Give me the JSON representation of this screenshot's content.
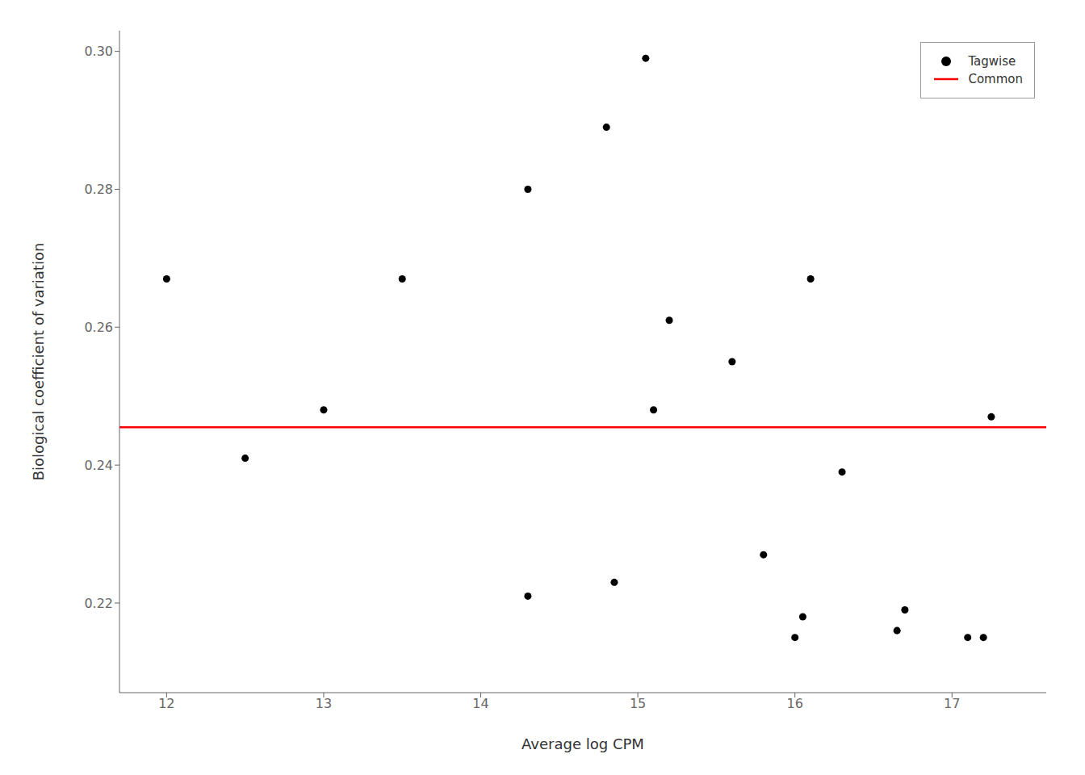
{
  "chart_data": {
    "type": "scatter",
    "xlabel": "Average log CPM",
    "ylabel": "Biological coefficient of variation",
    "x": [
      12.0,
      12.5,
      13.0,
      13.5,
      14.3,
      14.3,
      14.8,
      14.85,
      15.05,
      15.1,
      15.2,
      15.6,
      15.8,
      16.0,
      16.05,
      16.1,
      16.3,
      16.65,
      16.7,
      17.1,
      17.2,
      17.25
    ],
    "series": [
      {
        "name": "Tagwise",
        "type": "scatter",
        "marker": "circle",
        "color": "#000000",
        "values": [
          0.267,
          0.241,
          0.248,
          0.267,
          0.28,
          0.221,
          0.289,
          0.223,
          0.299,
          0.248,
          0.261,
          0.255,
          0.227,
          0.215,
          0.218,
          0.267,
          0.239,
          0.216,
          0.219,
          0.215,
          0.215,
          0.247
        ]
      },
      {
        "name": "Common",
        "type": "line",
        "line_style": "solid",
        "color": "#ff0000",
        "value": 0.2455
      }
    ],
    "xlim": [
      11.7,
      17.6
    ],
    "ylim": [
      0.207,
      0.303
    ],
    "xticks": [
      12,
      13,
      14,
      15,
      16,
      17
    ],
    "yticks": [
      0.22,
      0.24,
      0.26,
      0.28,
      {
        "value": 0.3,
        "label": "0.30"
      }
    ],
    "grid": false,
    "legend": "upper right"
  }
}
